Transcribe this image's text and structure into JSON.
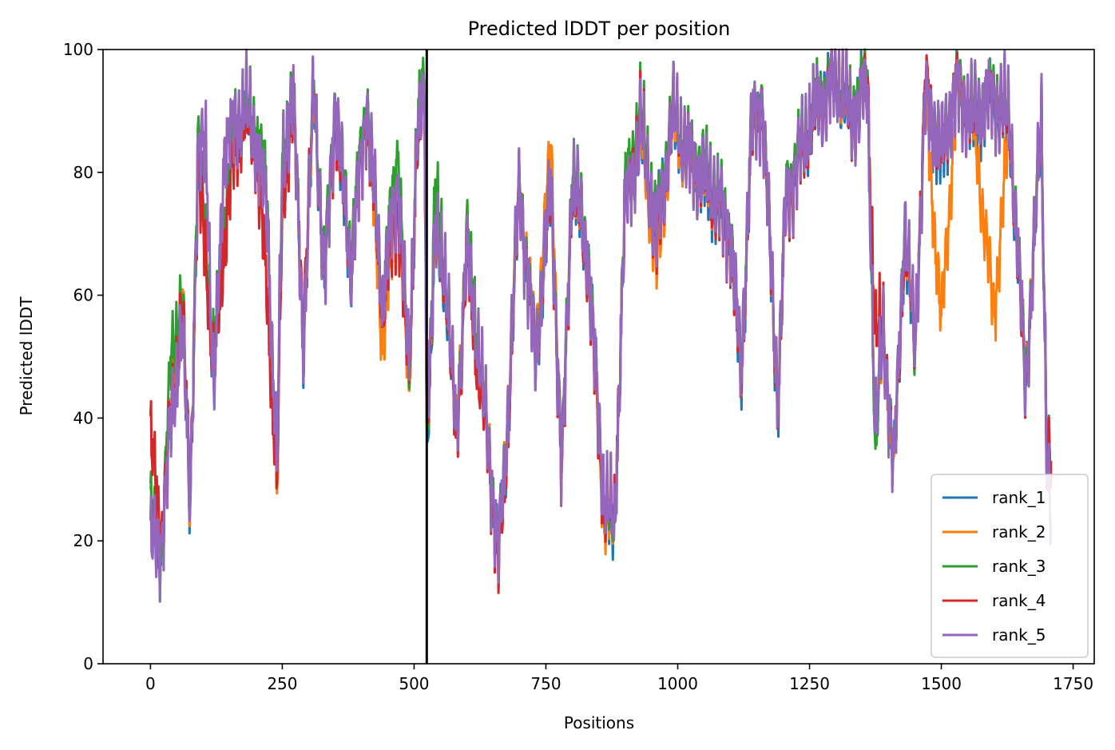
{
  "chart_data": {
    "type": "line",
    "title": "Predicted lDDT per position",
    "xlabel": "Positions",
    "ylabel": "Predicted lDDT",
    "xlim": [
      -90,
      1790
    ],
    "ylim": [
      0,
      100
    ],
    "xticks": [
      0,
      250,
      500,
      750,
      1000,
      1250,
      1500,
      1750
    ],
    "yticks": [
      0,
      20,
      40,
      60,
      80,
      100
    ],
    "grid": false,
    "legend_position": "bottom-right",
    "vertical_line_x": 524,
    "series": [
      {
        "name": "rank_1",
        "color": "#1f77b4",
        "offset": -0.5,
        "x": [
          0,
          20,
          40,
          60,
          75,
          90,
          105,
          120,
          140,
          160,
          180,
          200,
          220,
          240,
          250,
          270,
          290,
          310,
          330,
          350,
          380,
          410,
          440,
          470,
          490,
          505,
          520,
          524,
          540,
          560,
          580,
          600,
          620,
          640,
          660,
          675,
          700,
          730,
          760,
          780,
          800,
          830,
          860,
          880,
          900,
          930,
          960,
          990,
          1020,
          1060,
          1100,
          1120,
          1140,
          1160,
          1190,
          1205,
          1230,
          1260,
          1300,
          1330,
          1360,
          1375,
          1390,
          1410,
          1430,
          1450,
          1470,
          1500,
          1530,
          1560,
          1600,
          1630,
          1660,
          1690,
          1700,
          1708
        ],
        "y": [
          22,
          18,
          42,
          60,
          25,
          80,
          68,
          47,
          70,
          84,
          90,
          85,
          76,
          28,
          75,
          93,
          52,
          94,
          62,
          90,
          65,
          92,
          60,
          76,
          45,
          85,
          92,
          35,
          68,
          62,
          36,
          68,
          52,
          36,
          17,
          35,
          78,
          50,
          78,
          30,
          80,
          66,
          26,
          20,
          75,
          85,
          70,
          88,
          82,
          77,
          70,
          46,
          86,
          92,
          42,
          75,
          82,
          90,
          95,
          88,
          95,
          35,
          55,
          30,
          70,
          52,
          92,
          82,
          94,
          88,
          92,
          87,
          45,
          88,
          35,
          30
        ]
      },
      {
        "name": "rank_2",
        "color": "#ff7f0e",
        "offset": 0.8,
        "x": [
          0,
          20,
          40,
          60,
          75,
          90,
          105,
          120,
          140,
          160,
          180,
          200,
          220,
          240,
          250,
          270,
          290,
          310,
          330,
          350,
          380,
          410,
          440,
          470,
          490,
          505,
          520,
          524,
          540,
          560,
          580,
          600,
          620,
          640,
          660,
          675,
          700,
          730,
          760,
          780,
          800,
          830,
          860,
          880,
          900,
          930,
          960,
          990,
          1020,
          1060,
          1100,
          1120,
          1140,
          1160,
          1190,
          1205,
          1230,
          1260,
          1300,
          1330,
          1360,
          1375,
          1390,
          1410,
          1430,
          1450,
          1470,
          1500,
          1530,
          1560,
          1600,
          1630,
          1660,
          1690,
          1700,
          1708
        ],
        "y": [
          24,
          19,
          43,
          61,
          26,
          81,
          69,
          48,
          71,
          85,
          90,
          86,
          77,
          27,
          76,
          93,
          53,
          94,
          63,
          91,
          66,
          92,
          52,
          77,
          43,
          86,
          91,
          38,
          69,
          63,
          38,
          69,
          53,
          38,
          16,
          37,
          79,
          52,
          84,
          31,
          80,
          66,
          24,
          22,
          76,
          86,
          64,
          88,
          82,
          78,
          71,
          47,
          87,
          92,
          43,
          76,
          83,
          90,
          95,
          89,
          95,
          36,
          54,
          30,
          71,
          53,
          93,
          55,
          94,
          89,
          57,
          88,
          46,
          89,
          36,
          31
        ]
      },
      {
        "name": "rank_3",
        "color": "#2ca02c",
        "offset": 1.6,
        "x": [
          0,
          20,
          40,
          60,
          75,
          90,
          105,
          120,
          140,
          160,
          180,
          200,
          220,
          240,
          250,
          270,
          290,
          310,
          330,
          350,
          380,
          410,
          440,
          470,
          490,
          505,
          520,
          524,
          540,
          560,
          580,
          600,
          620,
          640,
          660,
          675,
          700,
          730,
          760,
          780,
          800,
          830,
          860,
          880,
          900,
          930,
          960,
          990,
          1020,
          1060,
          1100,
          1120,
          1140,
          1160,
          1190,
          1205,
          1230,
          1260,
          1300,
          1330,
          1360,
          1375,
          1390,
          1410,
          1430,
          1450,
          1470,
          1500,
          1530,
          1560,
          1600,
          1630,
          1660,
          1690,
          1700,
          1708
        ],
        "y": [
          25,
          18,
          51,
          60,
          27,
          85,
          70,
          49,
          72,
          88,
          91,
          87,
          78,
          30,
          82,
          94,
          54,
          95,
          64,
          92,
          67,
          93,
          60,
          85,
          44,
          88,
          94,
          36,
          77,
          64,
          37,
          70,
          54,
          37,
          18,
          36,
          79,
          51,
          79,
          32,
          82,
          67,
          27,
          21,
          77,
          90,
          71,
          90,
          84,
          80,
          72,
          48,
          88,
          93,
          42,
          77,
          84,
          91,
          96,
          90,
          96,
          33,
          56,
          31,
          72,
          51,
          94,
          84,
          95,
          90,
          94,
          89,
          46,
          89,
          36,
          32
        ]
      },
      {
        "name": "rank_4",
        "color": "#d62728",
        "offset": 2.4,
        "x": [
          0,
          20,
          40,
          60,
          75,
          90,
          105,
          120,
          140,
          160,
          180,
          200,
          220,
          240,
          250,
          270,
          290,
          310,
          330,
          350,
          380,
          410,
          440,
          470,
          490,
          505,
          520,
          524,
          540,
          560,
          580,
          600,
          620,
          640,
          660,
          675,
          700,
          730,
          760,
          780,
          800,
          830,
          860,
          880,
          900,
          930,
          960,
          990,
          1020,
          1060,
          1100,
          1120,
          1140,
          1160,
          1190,
          1205,
          1230,
          1260,
          1300,
          1330,
          1360,
          1375,
          1390,
          1410,
          1430,
          1450,
          1470,
          1500,
          1530,
          1560,
          1600,
          1630,
          1660,
          1690,
          1700,
          1708
        ],
        "y": [
          36,
          22,
          41,
          58,
          28,
          80,
          67,
          46,
          69,
          84,
          88,
          84,
          62,
          29,
          74,
          92,
          55,
          94,
          62,
          90,
          64,
          91,
          58,
          75,
          46,
          84,
          92,
          40,
          70,
          62,
          36,
          67,
          48,
          36,
          16,
          34,
          78,
          50,
          77,
          30,
          79,
          65,
          26,
          24,
          74,
          88,
          68,
          89,
          83,
          77,
          70,
          46,
          86,
          93,
          42,
          74,
          82,
          89,
          96,
          88,
          95,
          52,
          56,
          31,
          70,
          52,
          95,
          82,
          95,
          88,
          93,
          87,
          45,
          88,
          34,
          33
        ]
      },
      {
        "name": "rank_5",
        "color": "#9467bd",
        "offset": 3.2,
        "x": [
          0,
          20,
          40,
          60,
          75,
          90,
          105,
          120,
          140,
          160,
          180,
          200,
          220,
          240,
          250,
          270,
          290,
          310,
          330,
          350,
          380,
          410,
          440,
          470,
          490,
          505,
          520,
          524,
          540,
          560,
          580,
          600,
          620,
          640,
          660,
          675,
          700,
          730,
          760,
          780,
          800,
          830,
          860,
          880,
          900,
          930,
          960,
          990,
          1020,
          1060,
          1100,
          1120,
          1140,
          1160,
          1190,
          1205,
          1230,
          1260,
          1300,
          1330,
          1360,
          1375,
          1390,
          1410,
          1430,
          1450,
          1470,
          1500,
          1530,
          1560,
          1600,
          1630,
          1660,
          1690,
          1700,
          1708
        ],
        "y": [
          19,
          20,
          40,
          55,
          27,
          82,
          86,
          42,
          84,
          88,
          90,
          85,
          75,
          32,
          80,
          94,
          52,
          94,
          62,
          92,
          64,
          92,
          59,
          80,
          47,
          86,
          92,
          42,
          70,
          63,
          38,
          68,
          52,
          37,
          18,
          36,
          78,
          50,
          78,
          31,
          80,
          66,
          28,
          22,
          75,
          86,
          70,
          89,
          83,
          78,
          71,
          47,
          87,
          93,
          43,
          75,
          83,
          90,
          95,
          89,
          94,
          36,
          55,
          31,
          72,
          52,
          93,
          83,
          94,
          89,
          93,
          88,
          46,
          88,
          35,
          23
        ]
      }
    ]
  }
}
